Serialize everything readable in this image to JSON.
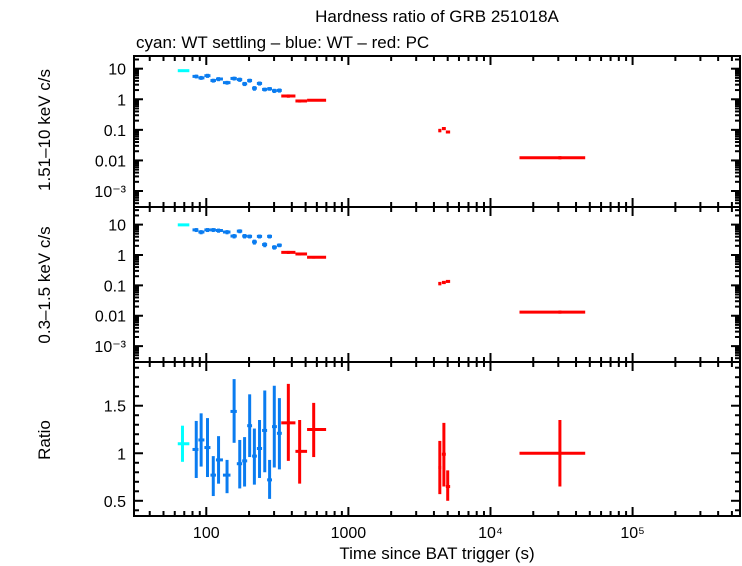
{
  "chart_data": {
    "type": "scatter",
    "title": "Hardness ratio of GRB 251018A",
    "subtitle": "cyan: WT settling – blue: WT – red: PC",
    "colors": {
      "cyan": "#00ffff",
      "blue": "#0a7cf0",
      "red": "#ff0000"
    },
    "x_axis": {
      "label": "Time since BAT trigger (s)",
      "scale": "log",
      "range": [
        31,
        570000
      ],
      "ticks": [
        {
          "value": 100,
          "label": "100"
        },
        {
          "value": 1000,
          "label": "1000"
        },
        {
          "value": 10000,
          "label": "10⁴"
        },
        {
          "value": 100000,
          "label": "10⁵"
        }
      ]
    },
    "panels": [
      {
        "ylabel": "1.51–10 keV c/s",
        "scale": "log",
        "range": [
          0.0003,
          26
        ],
        "ticks": [
          {
            "value": 10,
            "label": "10"
          },
          {
            "value": 1,
            "label": "1"
          },
          {
            "value": 0.1,
            "label": "0.1"
          },
          {
            "value": 0.01,
            "label": "0.01"
          },
          {
            "value": 0.001,
            "label": "10⁻³"
          }
        ],
        "series": [
          {
            "color": "cyan",
            "points": [
              [
                68,
                63,
                76,
                8.6,
                7.8,
                9.4
              ]
            ]
          },
          {
            "color": "blue",
            "points": [
              [
                85,
                80,
                88,
                5.6,
                4.8,
                6.4
              ],
              [
                92,
                88,
                97,
                5.0,
                4.3,
                5.8
              ],
              [
                102,
                97,
                107,
                5.9,
                5.0,
                6.8
              ],
              [
                112,
                107,
                117,
                4.1,
                3.5,
                4.7
              ],
              [
                122,
                117,
                131,
                4.6,
                3.9,
                5.3
              ],
              [
                140,
                131,
                148,
                3.5,
                3.0,
                4.0
              ],
              [
                157,
                148,
                164,
                4.8,
                4.1,
                5.5
              ],
              [
                172,
                164,
                179,
                4.4,
                3.7,
                5.1
              ],
              [
                186,
                179,
                194,
                3.2,
                2.7,
                3.7
              ],
              [
                202,
                194,
                210,
                4.1,
                3.5,
                4.7
              ],
              [
                218,
                210,
                227,
                2.3,
                1.9,
                2.7
              ],
              [
                237,
                227,
                247,
                3.3,
                2.8,
                3.8
              ],
              [
                258,
                247,
                268,
                2.1,
                1.8,
                2.4
              ],
              [
                279,
                268,
                290,
                2.2,
                1.9,
                2.5
              ],
              [
                301,
                290,
                314,
                1.9,
                1.6,
                2.2
              ],
              [
                327,
                314,
                340,
                1.95,
                1.65,
                2.25
              ]
            ]
          },
          {
            "color": "red",
            "points": [
              [
                378,
                337,
                424,
                1.28,
                1.12,
                1.44
              ],
              [
                454,
                424,
                512,
                0.88,
                0.78,
                0.98
              ],
              [
                570,
                512,
                697,
                0.93,
                0.85,
                1.01
              ],
              [
                4400,
                4300,
                4500,
                0.095,
                0.083,
                0.108
              ],
              [
                4700,
                4550,
                4850,
                0.11,
                0.098,
                0.124
              ],
              [
                5000,
                4850,
                5200,
                0.085,
                0.076,
                0.095
              ],
              [
                30800,
                16000,
                46400,
                0.0122,
                0.0108,
                0.0138
              ]
            ]
          }
        ]
      },
      {
        "ylabel": "0.3–1.5 keV c/s",
        "scale": "log",
        "range": [
          0.0003,
          38
        ],
        "ticks": [
          {
            "value": 10,
            "label": "10"
          },
          {
            "value": 1,
            "label": "1"
          },
          {
            "value": 0.1,
            "label": "0.1"
          },
          {
            "value": 0.01,
            "label": "0.01"
          },
          {
            "value": 0.001,
            "label": "10⁻³"
          }
        ],
        "series": [
          {
            "color": "cyan",
            "points": [
              [
                68,
                63,
                76,
                9.8,
                9.0,
                10.6
              ]
            ]
          },
          {
            "color": "blue",
            "points": [
              [
                85,
                80,
                88,
                6.7,
                5.7,
                7.7
              ],
              [
                92,
                88,
                97,
                5.7,
                4.8,
                6.6
              ],
              [
                102,
                97,
                107,
                6.7,
                5.7,
                7.7
              ],
              [
                112,
                107,
                117,
                6.7,
                5.7,
                7.7
              ],
              [
                122,
                117,
                131,
                6.4,
                5.4,
                7.4
              ],
              [
                140,
                131,
                148,
                5.7,
                4.8,
                6.6
              ],
              [
                157,
                148,
                164,
                4.2,
                3.5,
                4.9
              ],
              [
                172,
                164,
                179,
                6.1,
                5.2,
                7.0
              ],
              [
                186,
                179,
                194,
                4.2,
                3.5,
                4.9
              ],
              [
                202,
                194,
                210,
                4.1,
                3.5,
                4.7
              ],
              [
                218,
                210,
                227,
                2.7,
                2.2,
                3.2
              ],
              [
                237,
                227,
                247,
                4.1,
                3.5,
                4.7
              ],
              [
                258,
                247,
                268,
                2.2,
                1.8,
                2.6
              ],
              [
                279,
                268,
                290,
                4.1,
                3.5,
                4.7
              ],
              [
                301,
                290,
                314,
                1.8,
                1.5,
                2.1
              ],
              [
                327,
                314,
                340,
                2.1,
                1.8,
                2.4
              ]
            ]
          },
          {
            "color": "red",
            "points": [
              [
                378,
                337,
                424,
                1.22,
                1.08,
                1.36
              ],
              [
                454,
                424,
                512,
                1.08,
                0.96,
                1.2
              ],
              [
                570,
                512,
                697,
                0.84,
                0.76,
                0.92
              ],
              [
                4400,
                4300,
                4500,
                0.115,
                0.1,
                0.13
              ],
              [
                4700,
                4550,
                4850,
                0.125,
                0.11,
                0.14
              ],
              [
                5000,
                4850,
                5200,
                0.135,
                0.122,
                0.15
              ],
              [
                30800,
                16000,
                46400,
                0.0132,
                0.0117,
                0.0149
              ]
            ]
          }
        ]
      },
      {
        "ylabel": "Ratio",
        "scale": "linear",
        "range": [
          0.34,
          1.96
        ],
        "ticks": [
          {
            "value": 1.5,
            "label": "1.5"
          },
          {
            "value": 1,
            "label": "1"
          },
          {
            "value": 0.5,
            "label": "0.5"
          }
        ],
        "series": [
          {
            "color": "cyan",
            "points": [
              [
                68,
                63,
                76,
                1.1,
                0.91,
                1.29
              ]
            ]
          },
          {
            "color": "blue",
            "points": [
              [
                85,
                80,
                88,
                1.04,
                0.74,
                1.34
              ],
              [
                92,
                88,
                97,
                1.14,
                0.86,
                1.42
              ],
              [
                102,
                97,
                107,
                1.06,
                0.75,
                1.37
              ],
              [
                112,
                107,
                117,
                0.77,
                0.55,
                0.97
              ],
              [
                122,
                117,
                131,
                0.93,
                0.68,
                1.18
              ],
              [
                140,
                131,
                148,
                0.77,
                0.58,
                0.93
              ],
              [
                157,
                148,
                164,
                1.44,
                1.11,
                1.78
              ],
              [
                172,
                164,
                179,
                0.89,
                0.63,
                1.14
              ],
              [
                186,
                179,
                194,
                0.92,
                0.65,
                1.17
              ],
              [
                202,
                194,
                210,
                1.29,
                0.96,
                1.62
              ],
              [
                218,
                210,
                227,
                0.97,
                0.67,
                1.26
              ],
              [
                237,
                227,
                247,
                1.05,
                0.74,
                1.35
              ],
              [
                258,
                247,
                268,
                1.24,
                0.8,
                1.66
              ],
              [
                279,
                268,
                290,
                0.72,
                0.52,
                0.93
              ],
              [
                301,
                290,
                314,
                1.28,
                0.85,
                1.71
              ],
              [
                327,
                314,
                340,
                1.21,
                0.83,
                1.58
              ]
            ]
          },
          {
            "color": "red",
            "points": [
              [
                378,
                337,
                424,
                1.32,
                0.92,
                1.73
              ],
              [
                454,
                424,
                512,
                1.02,
                0.68,
                1.35
              ],
              [
                570,
                512,
                697,
                1.25,
                0.96,
                1.53
              ],
              [
                4400,
                4300,
                4500,
                0.85,
                0.57,
                1.13
              ],
              [
                4700,
                4550,
                4850,
                0.99,
                0.65,
                1.32
              ],
              [
                5000,
                4850,
                5200,
                0.65,
                0.5,
                0.82
              ],
              [
                30800,
                16000,
                46400,
                1.0,
                0.65,
                1.35
              ]
            ]
          }
        ]
      }
    ]
  }
}
